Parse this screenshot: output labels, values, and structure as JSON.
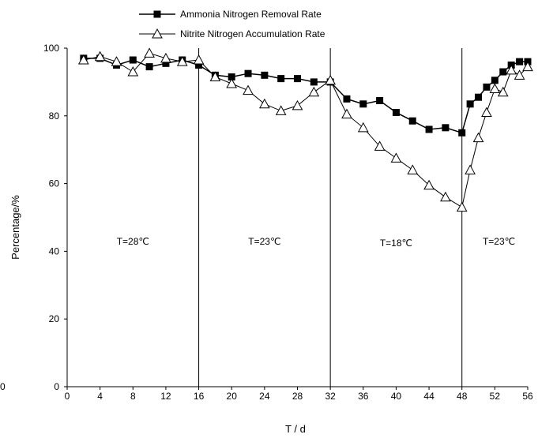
{
  "chart_data": {
    "type": "line",
    "xlabel": "T / d",
    "ylabel": "Percentage/%",
    "xlim": [
      0,
      56
    ],
    "ylim": [
      0,
      100
    ],
    "xticks": [
      0,
      4,
      8,
      12,
      16,
      20,
      24,
      28,
      32,
      36,
      40,
      44,
      48,
      52,
      56
    ],
    "yticks": [
      0,
      20,
      40,
      60,
      80,
      100
    ],
    "extra_label": "0",
    "legend_position": "top-center",
    "grid": false,
    "series": [
      {
        "name": "Ammonia Nitrogen Removal Rate",
        "marker": "filled-square",
        "color": "#000000",
        "x": [
          2,
          4,
          6,
          8,
          10,
          12,
          14,
          16,
          18,
          20,
          22,
          24,
          26,
          28,
          30,
          32,
          34,
          36,
          38,
          40,
          42,
          44,
          46,
          48,
          49,
          50,
          51,
          52,
          53,
          54,
          55,
          56
        ],
        "y": [
          97,
          97,
          95,
          96.5,
          94.5,
          95.5,
          96.5,
          95,
          92,
          91.5,
          92.5,
          92,
          91,
          91,
          90,
          90,
          85,
          83.5,
          84.5,
          81,
          78.5,
          76,
          76.5,
          75,
          83.5,
          85.5,
          88.5,
          90.5,
          93,
          95,
          96,
          96
        ]
      },
      {
        "name": "Nitrite Nitrogen Accumulation Rate",
        "marker": "open-triangle",
        "color": "#000000",
        "x": [
          2,
          4,
          6,
          8,
          10,
          12,
          14,
          16,
          18,
          20,
          22,
          24,
          26,
          28,
          30,
          32,
          34,
          36,
          38,
          40,
          42,
          44,
          46,
          48,
          49,
          50,
          51,
          52,
          53,
          54,
          55,
          56
        ],
        "y": [
          96.5,
          97.5,
          96,
          93,
          98.5,
          97,
          96,
          96.5,
          91.5,
          89.5,
          87.5,
          83.5,
          81.5,
          83,
          87,
          90.5,
          80.5,
          76.5,
          71,
          67.5,
          64,
          59.5,
          56,
          53,
          64,
          73.5,
          81,
          88,
          87,
          93.5,
          92,
          94.5
        ]
      }
    ],
    "vertical_lines": [
      16,
      32,
      48
    ],
    "annotations": [
      {
        "text": "T=28℃",
        "x": 8,
        "y": 42
      },
      {
        "text": "T=23℃",
        "x": 24,
        "y": 42
      },
      {
        "text": "T=18℃",
        "x": 40,
        "y": 41.5
      },
      {
        "text": "T=23℃",
        "x": 52.5,
        "y": 42
      }
    ]
  }
}
